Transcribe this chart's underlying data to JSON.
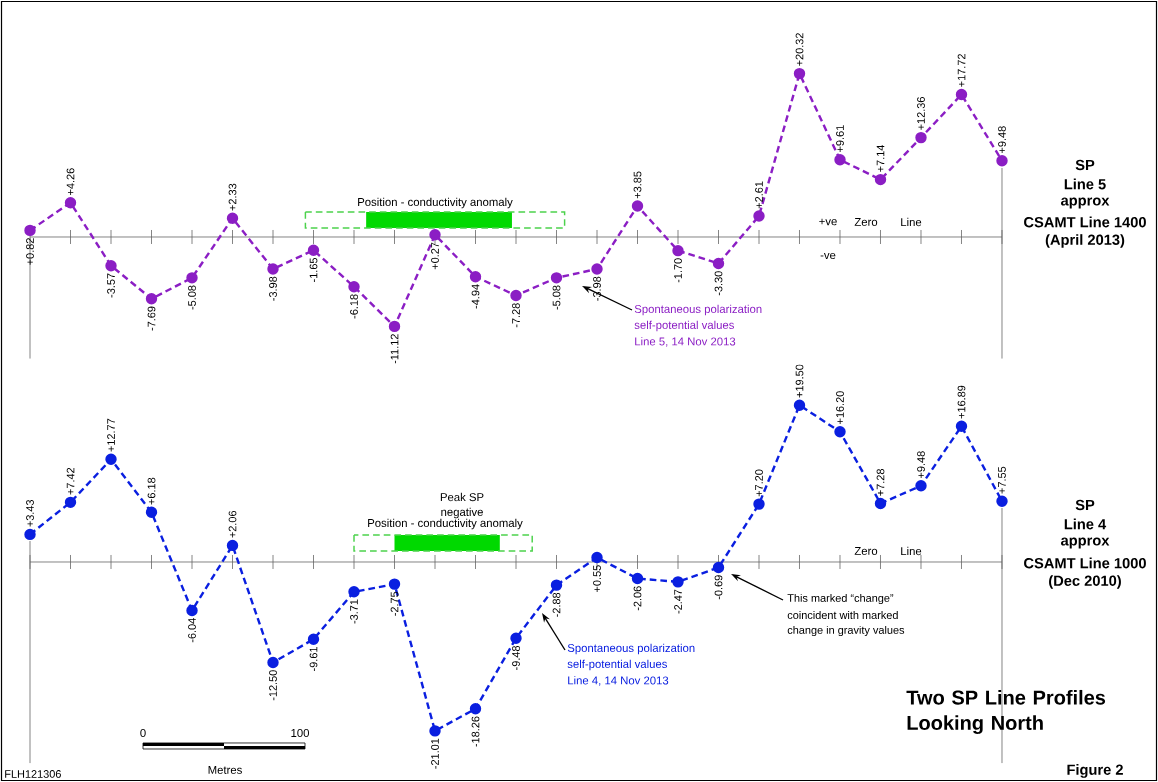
{
  "chart_data": [
    {
      "type": "line",
      "categories": [
        null,
        null,
        null,
        null,
        null,
        null,
        null,
        null,
        null,
        null,
        null,
        null,
        null,
        null,
        null,
        null,
        null,
        null,
        null,
        null,
        null,
        null,
        null,
        null,
        null
      ],
      "series": [
        {
          "color": "#8b1ec4",
          "values": [
            0.82,
            4.26,
            -3.57,
            -7.69,
            -5.08,
            2.33,
            -3.98,
            -1.65,
            -6.18,
            -11.12,
            0.27,
            -4.94,
            -7.28,
            -5.08,
            -3.98,
            3.85,
            -1.7,
            -3.3,
            2.61,
            20.32,
            9.61,
            7.14,
            12.36,
            17.72,
            9.48
          ],
          "value_labels": [
            "+0.82",
            "+4.26",
            "-3.57",
            "-7.69",
            "-5.08",
            "+2.33",
            "-3.98",
            "-1.65",
            "-6.18",
            "-11.12",
            "+0.27",
            "-4.94",
            "-7.28",
            "-5.08",
            "-3.98",
            "+3.85",
            "-1.70",
            "-3.30",
            "+2.61",
            "+20.32",
            "+9.61",
            "+7.14",
            "+12.36",
            "+17.72",
            "+9.48"
          ]
        }
      ],
      "marker": "circle",
      "line_style": "dashed",
      "annotations": [
        "SP",
        "Line 5",
        "approx",
        "CSAMT Line 1400",
        "(April 2013)",
        "+ve",
        "Zero",
        "Line",
        "-ve",
        "Spontaneous polarization",
        "self-potential values",
        "Line 5, 14 Nov 2013",
        "Position - conductivity anomaly"
      ]
    },
    {
      "type": "line",
      "title": "Two SP Line Profiles Looking North",
      "categories": [
        null,
        null,
        null,
        null,
        null,
        null,
        null,
        null,
        null,
        null,
        null,
        null,
        null,
        null,
        null,
        null,
        null,
        null,
        null,
        null,
        null,
        null,
        null,
        null,
        null
      ],
      "series": [
        {
          "color": "#0a1fe0",
          "values": [
            3.43,
            7.42,
            12.77,
            6.18,
            -6.04,
            2.06,
            -12.5,
            -9.61,
            -3.71,
            -2.75,
            -21.01,
            -18.26,
            -9.48,
            -2.88,
            0.55,
            -2.06,
            -2.47,
            -0.69,
            7.2,
            19.5,
            16.2,
            7.28,
            9.48,
            16.89,
            7.55
          ],
          "value_labels": [
            "+3.43",
            "+7.42",
            "+12.77",
            "+6.18",
            "-6.04",
            "+2.06",
            "-12.50",
            "-9.61",
            "-3.71",
            "-2.75",
            "-21.01",
            "-18.26",
            "-9.48",
            "-2.88",
            "+0.55",
            "-2.06",
            "-2.47",
            "-0.69",
            "+7.20",
            "+19.50",
            "+16.20",
            "+7.28",
            "+9.48",
            "+16.89",
            "+7.55"
          ]
        }
      ],
      "marker": "circle",
      "line_style": "dashed",
      "annotations": [
        "SP",
        "Line 4",
        "approx",
        "CSAMT Line 1000",
        "(Dec 2010)",
        "Zero",
        "Line",
        "Peak SP",
        "negative",
        "Spontaneous polarization",
        "self-potential values",
        "Line 4, 14 Nov 2013",
        "This marked “change”",
        "coincident with marked",
        "change in gravity values",
        "0",
        "100",
        "Metres",
        "FLH121306",
        "Figure 2",
        "Position - conductivity anomaly"
      ]
    }
  ]
}
